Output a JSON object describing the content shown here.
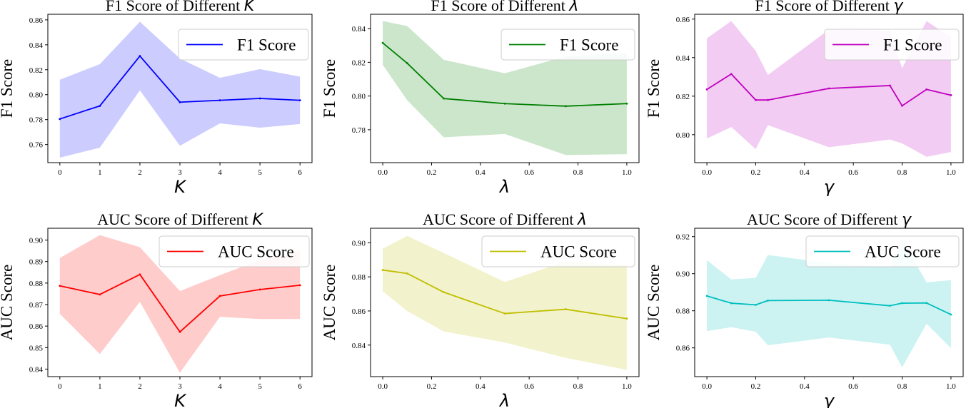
{
  "figure": {
    "chart_data": [
      {
        "type": "line",
        "title": "F1 Score of Different",
        "title_symbol": "K",
        "xlabel": "K",
        "ylabel": "F1 Score",
        "x": [
          0,
          1,
          2,
          3,
          4,
          5,
          6
        ],
        "xticks": [
          0,
          1,
          2,
          3,
          4,
          5,
          6
        ],
        "xtick_labels": [
          "0",
          "1",
          "2",
          "3",
          "4",
          "5",
          "6"
        ],
        "yticks": [
          0.76,
          0.78,
          0.8,
          0.82,
          0.84,
          0.86
        ],
        "ytick_labels": [
          "0.76",
          "0.78",
          "0.80",
          "0.82",
          "0.84",
          "0.86"
        ],
        "xlim": [
          -0.3,
          6.3
        ],
        "ylim": [
          0.7455,
          0.8645
        ],
        "series": [
          {
            "name": "F1 Score",
            "color": "#0000ff",
            "values": [
              0.7805,
              0.791,
              0.831,
              0.794,
              0.7955,
              0.797,
              0.7955
            ],
            "band_upper": [
              0.812,
              0.8245,
              0.8585,
              0.829,
              0.8135,
              0.8205,
              0.8145
            ],
            "band_lower": [
              0.7495,
              0.7575,
              0.8035,
              0.759,
              0.777,
              0.7735,
              0.7765
            ],
            "band_color": "#0000ff"
          }
        ],
        "legend_position": "upper right",
        "grid": false
      },
      {
        "type": "line",
        "title": "F1 Score of Different",
        "title_symbol": "λ",
        "xlabel": "λ",
        "ylabel": "F1 Score",
        "x": [
          0.0,
          0.1,
          0.25,
          0.5,
          0.75,
          1.0
        ],
        "xticks": [
          0.0,
          0.2,
          0.4,
          0.6,
          0.8,
          1.0
        ],
        "xtick_labels": [
          "0.0",
          "0.2",
          "0.4",
          "0.6",
          "0.8",
          "1.0"
        ],
        "yticks": [
          0.78,
          0.8,
          0.82,
          0.84
        ],
        "ytick_labels": [
          "0.78",
          "0.80",
          "0.82",
          "0.84"
        ],
        "xlim": [
          -0.05,
          1.05
        ],
        "ylim": [
          0.7605,
          0.8485
        ],
        "series": [
          {
            "name": "F1 Score",
            "color": "#008000",
            "values": [
              0.8315,
              0.8195,
              0.7985,
              0.7955,
              0.794,
              0.7955
            ],
            "band_upper": [
              0.8445,
              0.8415,
              0.8215,
              0.8135,
              0.8235,
              0.8255
            ],
            "band_lower": [
              0.8185,
              0.7975,
              0.7755,
              0.7775,
              0.765,
              0.7655
            ],
            "band_color": "#008000"
          }
        ],
        "legend_position": "upper right",
        "grid": false
      },
      {
        "type": "line",
        "title": "F1 Score of Different",
        "title_symbol": "γ",
        "xlabel": "γ",
        "ylabel": "F1 Score",
        "x": [
          0.0,
          0.1,
          0.2,
          0.25,
          0.5,
          0.75,
          0.8,
          0.9,
          1.0
        ],
        "xticks": [
          0.0,
          0.2,
          0.4,
          0.6,
          0.8,
          1.0
        ],
        "xtick_labels": [
          "0.0",
          "0.2",
          "0.4",
          "0.6",
          "0.8",
          "1.0"
        ],
        "yticks": [
          0.8,
          0.82,
          0.84,
          0.86
        ],
        "ytick_labels": [
          "0.80",
          "0.82",
          "0.84",
          "0.86"
        ],
        "xlim": [
          -0.05,
          1.05
        ],
        "ylim": [
          0.7855,
          0.8625
        ],
        "series": [
          {
            "name": "F1 Score",
            "color": "#bf00bf",
            "values": [
              0.8235,
              0.8315,
              0.818,
              0.818,
              0.824,
              0.8255,
              0.815,
              0.8235,
              0.8205
            ],
            "band_upper": [
              0.85,
              0.859,
              0.8435,
              0.831,
              0.8545,
              0.854,
              0.8345,
              0.859,
              0.8505
            ],
            "band_lower": [
              0.798,
              0.804,
              0.7925,
              0.805,
              0.7935,
              0.7975,
              0.7955,
              0.7885,
              0.791
            ],
            "band_color": "#bf00bf"
          }
        ],
        "legend_position": "upper right",
        "grid": false
      },
      {
        "type": "line",
        "title": "AUC Score of Different",
        "title_symbol": "K",
        "xlabel": "K",
        "ylabel": "AUC Score",
        "x": [
          0,
          1,
          2,
          3,
          4,
          5,
          6
        ],
        "xticks": [
          0,
          1,
          2,
          3,
          4,
          5,
          6
        ],
        "xtick_labels": [
          "0",
          "1",
          "2",
          "3",
          "4",
          "5",
          "6"
        ],
        "yticks": [
          0.84,
          0.85,
          0.86,
          0.87,
          0.88,
          0.89,
          0.9
        ],
        "ytick_labels": [
          "0.84",
          "0.85",
          "0.86",
          "0.87",
          "0.88",
          "0.89",
          "0.90"
        ],
        "xlim": [
          -0.3,
          6.3
        ],
        "ylim": [
          0.8365,
          0.9055
        ],
        "series": [
          {
            "name": "AUC Score",
            "color": "#ff0000",
            "values": [
              0.8787,
              0.8747,
              0.884,
              0.8573,
              0.874,
              0.877,
              0.879
            ],
            "band_upper": [
              0.8917,
              0.9023,
              0.8967,
              0.8763,
              0.8837,
              0.8907,
              0.895
            ],
            "band_lower": [
              0.8657,
              0.847,
              0.8713,
              0.8383,
              0.8643,
              0.8633,
              0.8633
            ],
            "band_color": "#ff0000"
          }
        ],
        "legend_position": "upper right",
        "grid": false
      },
      {
        "type": "line",
        "title": "AUC Score of Different",
        "title_symbol": "λ",
        "xlabel": "λ",
        "ylabel": "AUC Score",
        "x": [
          0.0,
          0.1,
          0.25,
          0.5,
          0.75,
          1.0
        ],
        "xticks": [
          0.0,
          0.2,
          0.4,
          0.6,
          0.8,
          1.0
        ],
        "xtick_labels": [
          "0.0",
          "0.2",
          "0.4",
          "0.6",
          "0.8",
          "1.0"
        ],
        "yticks": [
          0.84,
          0.86,
          0.88,
          0.9
        ],
        "ytick_labels": [
          "0.84",
          "0.86",
          "0.88",
          "0.90"
        ],
        "xlim": [
          -0.05,
          1.05
        ],
        "ylim": [
          0.8215,
          0.9085
        ],
        "series": [
          {
            "name": "AUC Score",
            "color": "#bfbf00",
            "values": [
              0.884,
              0.882,
              0.871,
              0.8585,
              0.861,
              0.8555
            ],
            "band_upper": [
              0.8965,
              0.904,
              0.894,
              0.877,
              0.889,
              0.887
            ],
            "band_lower": [
              0.8715,
              0.86,
              0.848,
              0.8415,
              0.8325,
              0.8255
            ],
            "band_color": "#bfbf00"
          }
        ],
        "legend_position": "upper right",
        "grid": false
      },
      {
        "type": "line",
        "title": "AUC Score of Different",
        "title_symbol": "γ",
        "xlabel": "γ",
        "ylabel": "AUC Score",
        "x": [
          0.0,
          0.1,
          0.2,
          0.25,
          0.5,
          0.75,
          0.8,
          0.9,
          1.0
        ],
        "xticks": [
          0.0,
          0.2,
          0.4,
          0.6,
          0.8,
          1.0
        ],
        "xtick_labels": [
          "0.0",
          "0.2",
          "0.4",
          "0.6",
          "0.8",
          "1.0"
        ],
        "yticks": [
          0.86,
          0.88,
          0.9,
          0.92
        ],
        "ytick_labels": [
          "0.86",
          "0.88",
          "0.90",
          "0.92"
        ],
        "xlim": [
          -0.05,
          1.05
        ],
        "ylim": [
          0.8445,
          0.9245
        ],
        "series": [
          {
            "name": "AUC Score",
            "color": "#00bfbf",
            "values": [
              0.888,
              0.8841,
              0.8832,
              0.8855,
              0.8857,
              0.8827,
              0.8841,
              0.8842,
              0.878
            ],
            "band_upper": [
              0.9073,
              0.8969,
              0.8977,
              0.9101,
              0.9056,
              0.9035,
              0.9185,
              0.8953,
              0.8965
            ],
            "band_lower": [
              0.869,
              0.8712,
              0.8687,
              0.8614,
              0.8656,
              0.8617,
              0.8495,
              0.873,
              0.8599
            ],
            "band_color": "#00bfbf"
          }
        ],
        "legend_position": "upper right",
        "grid": false
      }
    ]
  }
}
